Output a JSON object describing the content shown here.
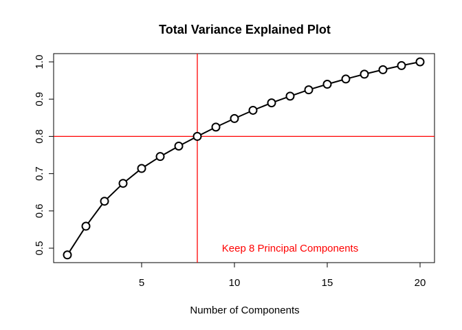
{
  "chart_data": {
    "type": "line",
    "title": "Total Variance Explained Plot",
    "xlabel": "Number of Components",
    "ylabel": "",
    "xlim": [
      1,
      20
    ],
    "ylim": [
      0.5,
      1.0
    ],
    "x_ticks": [
      5,
      10,
      15,
      20
    ],
    "y_ticks": [
      0.5,
      0.6,
      0.7,
      0.8,
      0.9,
      1.0
    ],
    "x_tick_labels": [
      "5",
      "10",
      "15",
      "20"
    ],
    "y_tick_labels": [
      "0.5",
      "0.6",
      "0.7",
      "0.8",
      "0.9",
      "1.0"
    ],
    "grid": false,
    "x": [
      1,
      2,
      3,
      4,
      5,
      6,
      7,
      8,
      9,
      10,
      11,
      12,
      13,
      14,
      15,
      16,
      17,
      18,
      19,
      20
    ],
    "series": [
      {
        "values": [
          0.482,
          0.559,
          0.626,
          0.674,
          0.714,
          0.746,
          0.774,
          0.8,
          0.825,
          0.848,
          0.87,
          0.89,
          0.908,
          0.925,
          0.94,
          0.954,
          0.967,
          0.979,
          0.99,
          1.0
        ],
        "color": "#000000",
        "marker": "open-circle"
      }
    ],
    "reference_lines": [
      {
        "orientation": "vertical",
        "value": 8,
        "color": "#ff0000"
      },
      {
        "orientation": "horizontal",
        "value": 0.8,
        "color": "#ff0000"
      }
    ],
    "annotation": {
      "text": "Keep 8 Principal Components",
      "x": 13,
      "y": 0.5,
      "color": "#ff0000"
    }
  }
}
